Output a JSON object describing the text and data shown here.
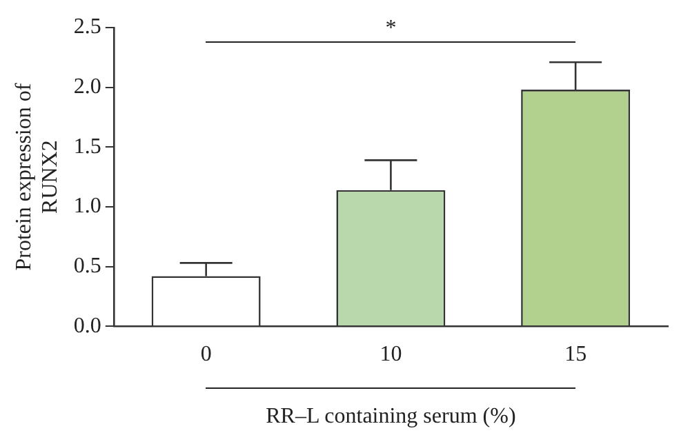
{
  "chart_data": {
    "type": "bar",
    "xlabel": "RR–L containing serum (%)",
    "ylabel": "Protein expression of RUNX2",
    "categories": [
      "0",
      "10",
      "15"
    ],
    "values": [
      0.42,
      1.14,
      1.98
    ],
    "colors": [
      "#ffffff",
      "#b9d8ac",
      "#b3d18e"
    ],
    "errors": [
      [
        0.42,
        0.53
      ],
      [
        1.14,
        1.39
      ],
      [
        1.98,
        2.21
      ]
    ],
    "annotations": [
      "*"
    ],
    "ylim": [
      0,
      2.5
    ],
    "yticks": [
      {
        "value": 0,
        "label": "0.0"
      },
      0.5,
      {
        "value": 1,
        "label": "1.0"
      },
      1.5,
      {
        "value": 2,
        "label": "2.0"
      },
      2.5
    ],
    "grid": false,
    "legend": false
  }
}
